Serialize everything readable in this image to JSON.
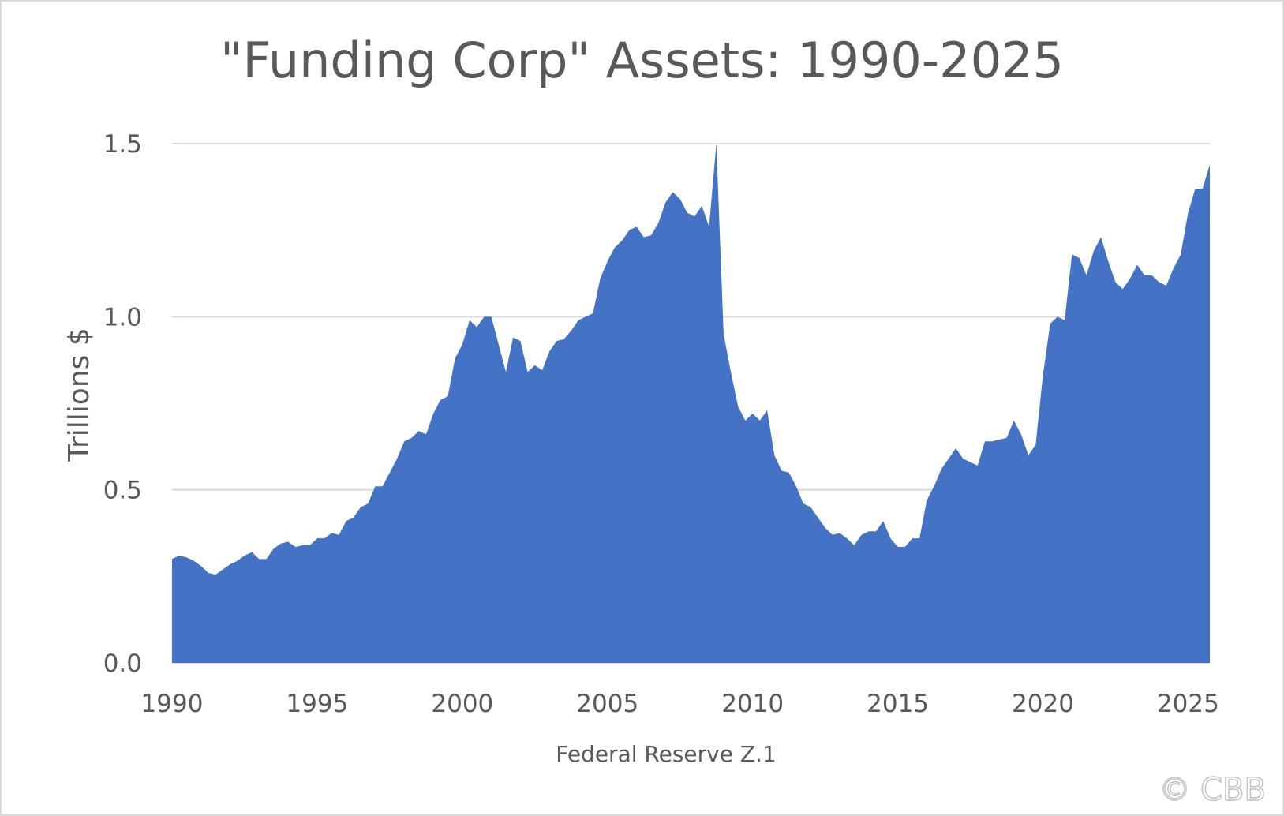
{
  "chart_data": {
    "type": "area",
    "title": "\"Funding Corp\" Assets: 1990-2025",
    "xlabel": "Federal Reserve Z.1",
    "ylabel": "Trillions $",
    "xlim": [
      1990,
      2025.75
    ],
    "ylim": [
      0,
      1.5
    ],
    "x_ticks": [
      "1990",
      "1995",
      "2000",
      "2005",
      "2010",
      "2015",
      "2020",
      "2025"
    ],
    "y_ticks": [
      "0.0",
      "0.5",
      "1.0",
      "1.5"
    ],
    "grid": true,
    "color": "#4472C4",
    "watermark": "© CBB",
    "series": [
      {
        "x": [
          1990.0,
          1990.25,
          1990.5,
          1990.75,
          1991.0,
          1991.25,
          1991.5,
          1991.75,
          1992.0,
          1992.25,
          1992.5,
          1992.75,
          1993.0,
          1993.25,
          1993.5,
          1993.75,
          1994.0,
          1994.25,
          1994.5,
          1994.75,
          1995.0,
          1995.25,
          1995.5,
          1995.75,
          1996.0,
          1996.25,
          1996.5,
          1996.75,
          1997.0,
          1997.25,
          1997.5,
          1997.75,
          1998.0,
          1998.25,
          1998.5,
          1998.75,
          1999.0,
          1999.25,
          1999.5,
          1999.75,
          2000.0,
          2000.25,
          2000.5,
          2000.75,
          2001.0,
          2001.25,
          2001.5,
          2001.75,
          2002.0,
          2002.25,
          2002.5,
          2002.75,
          2003.0,
          2003.25,
          2003.5,
          2003.75,
          2004.0,
          2004.25,
          2004.5,
          2004.75,
          2005.0,
          2005.25,
          2005.5,
          2005.75,
          2006.0,
          2006.25,
          2006.5,
          2006.75,
          2007.0,
          2007.25,
          2007.5,
          2007.75,
          2008.0,
          2008.25,
          2008.5,
          2008.75,
          2009.0,
          2009.25,
          2009.5,
          2009.75,
          2010.0,
          2010.25,
          2010.5,
          2010.75,
          2011.0,
          2011.25,
          2011.5,
          2011.75,
          2012.0,
          2012.25,
          2012.5,
          2012.75,
          2013.0,
          2013.25,
          2013.5,
          2013.75,
          2014.0,
          2014.25,
          2014.5,
          2014.75,
          2015.0,
          2015.25,
          2015.5,
          2015.75,
          2016.0,
          2016.25,
          2016.5,
          2016.75,
          2017.0,
          2017.25,
          2017.5,
          2017.75,
          2018.0,
          2018.25,
          2018.5,
          2018.75,
          2019.0,
          2019.25,
          2019.5,
          2019.75,
          2020.0,
          2020.25,
          2020.5,
          2020.75,
          2021.0,
          2021.25,
          2021.5,
          2021.75,
          2022.0,
          2022.25,
          2022.5,
          2022.75,
          2023.0,
          2023.25,
          2023.5,
          2023.75,
          2024.0,
          2024.25,
          2024.5,
          2024.75,
          2025.0,
          2025.25,
          2025.5,
          2025.75
        ],
        "y": [
          0.3,
          0.31,
          0.305,
          0.295,
          0.28,
          0.26,
          0.255,
          0.27,
          0.285,
          0.295,
          0.31,
          0.32,
          0.3,
          0.3,
          0.33,
          0.345,
          0.35,
          0.335,
          0.34,
          0.34,
          0.36,
          0.36,
          0.375,
          0.37,
          0.41,
          0.42,
          0.45,
          0.46,
          0.51,
          0.51,
          0.55,
          0.59,
          0.64,
          0.65,
          0.67,
          0.66,
          0.72,
          0.76,
          0.77,
          0.88,
          0.92,
          0.99,
          0.97,
          1.0,
          1.0,
          0.92,
          0.84,
          0.94,
          0.93,
          0.84,
          0.86,
          0.845,
          0.9,
          0.93,
          0.935,
          0.96,
          0.99,
          1.0,
          1.01,
          1.11,
          1.16,
          1.2,
          1.22,
          1.25,
          1.26,
          1.23,
          1.235,
          1.27,
          1.33,
          1.36,
          1.34,
          1.3,
          1.29,
          1.32,
          1.26,
          1.5,
          0.95,
          0.84,
          0.74,
          0.7,
          0.72,
          0.7,
          0.73,
          0.6,
          0.555,
          0.55,
          0.51,
          0.46,
          0.45,
          0.42,
          0.39,
          0.37,
          0.375,
          0.36,
          0.34,
          0.37,
          0.38,
          0.38,
          0.41,
          0.36,
          0.335,
          0.335,
          0.36,
          0.36,
          0.47,
          0.51,
          0.56,
          0.59,
          0.62,
          0.59,
          0.58,
          0.57,
          0.64,
          0.64,
          0.645,
          0.65,
          0.7,
          0.66,
          0.6,
          0.63,
          0.83,
          0.98,
          1.0,
          0.99,
          1.18,
          1.17,
          1.12,
          1.19,
          1.23,
          1.16,
          1.1,
          1.08,
          1.11,
          1.15,
          1.12,
          1.12,
          1.1,
          1.09,
          1.14,
          1.18,
          1.3,
          1.37,
          1.37,
          1.44
        ]
      }
    ]
  }
}
